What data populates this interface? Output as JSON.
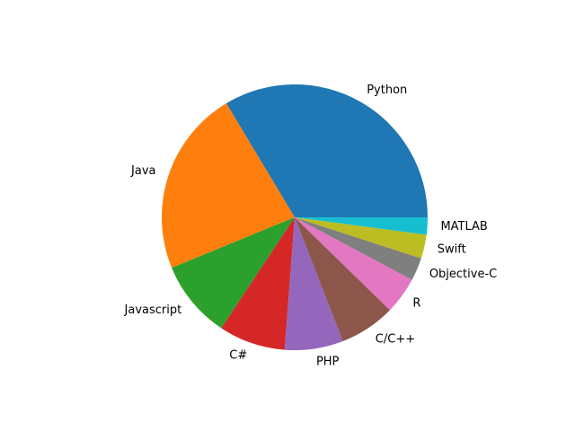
{
  "chart_data": {
    "type": "pie",
    "title": "",
    "start_angle_deg": 0,
    "direction": "counterclockwise",
    "slices": [
      {
        "label": "Python",
        "value": 33.6,
        "color": "#1f77b4"
      },
      {
        "label": "Java",
        "value": 22.6,
        "color": "#ff7f0e"
      },
      {
        "label": "Javascript",
        "value": 9.5,
        "color": "#2ca02c"
      },
      {
        "label": "C#",
        "value": 8.1,
        "color": "#d62728"
      },
      {
        "label": "PHP",
        "value": 7.1,
        "color": "#9467bd"
      },
      {
        "label": "C/C++",
        "value": 6.8,
        "color": "#8c564b"
      },
      {
        "label": "R",
        "value": 4.5,
        "color": "#e377c2"
      },
      {
        "label": "Objective-C",
        "value": 2.8,
        "color": "#7f7f7f"
      },
      {
        "label": "Swift",
        "value": 2.9,
        "color": "#bcbd22"
      },
      {
        "label": "MATLAB",
        "value": 2.1,
        "color": "#17becf"
      }
    ]
  }
}
